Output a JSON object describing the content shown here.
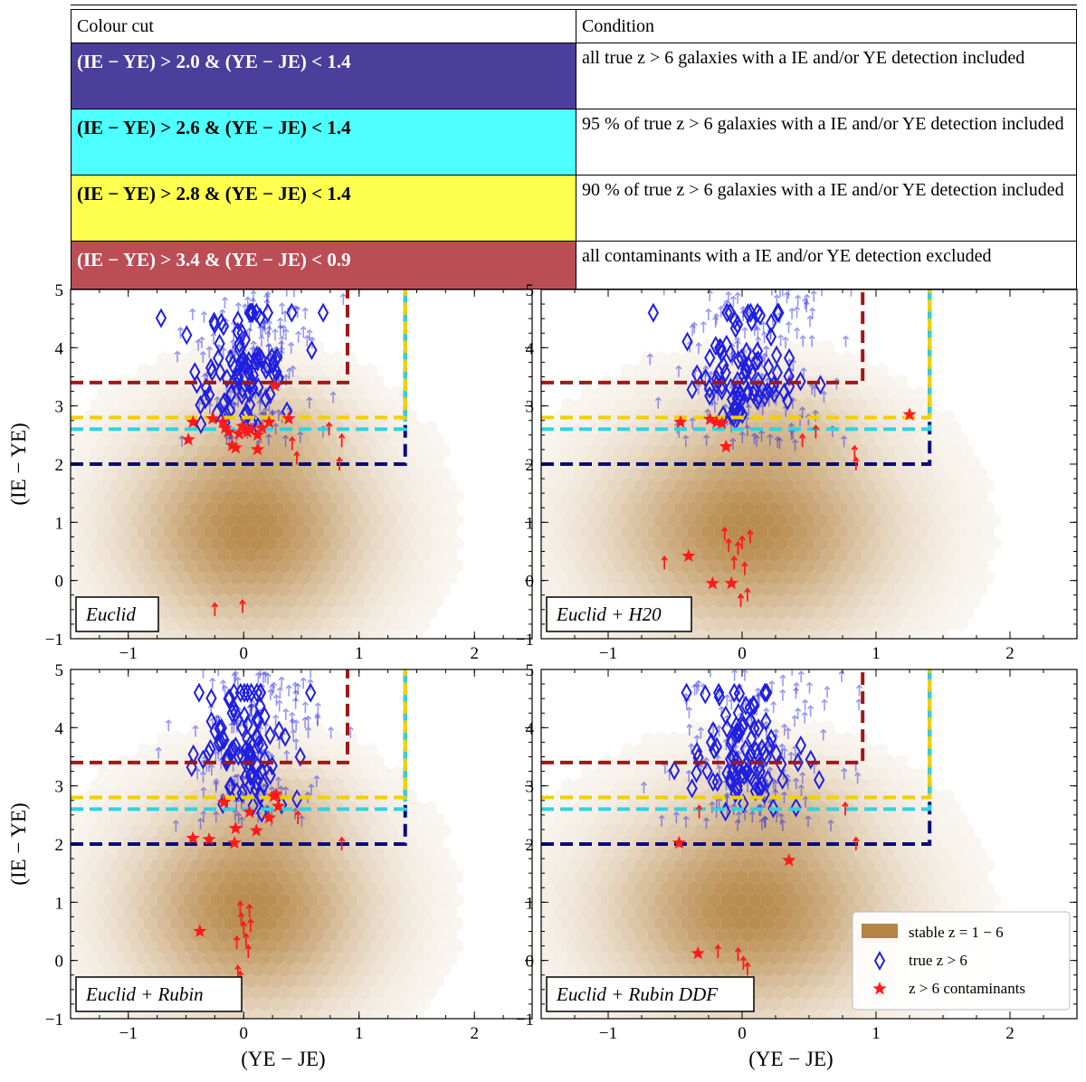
{
  "table": {
    "header": {
      "cut": "Colour cut",
      "condition": "Condition"
    },
    "rows": [
      {
        "cut": "(IE − YE) > 2.0 & (YE − JE) < 1.4",
        "condition": "all true z > 6 galaxies with a IE and/or YE detection included",
        "bg": "#4b3f9b",
        "fg": "#ffffff"
      },
      {
        "cut": "(IE − YE) > 2.6 & (YE − JE) < 1.4",
        "condition": "95 % of true z > 6 galaxies with a IE and/or YE detection included",
        "bg": "#4dffff",
        "fg": "#000000"
      },
      {
        "cut": "(IE − YE) > 2.8 & (YE − JE) < 1.4",
        "condition": "90 % of true z > 6 galaxies with a IE and/or YE detection included",
        "bg": "#ffff4d",
        "fg": "#000000"
      },
      {
        "cut": "(IE − YE) > 3.4 & (YE − JE) < 0.9",
        "condition": "all contaminants with a IE and/or YE detection excluded",
        "bg": "#bb4e55",
        "fg": "#ffffff"
      }
    ]
  },
  "chart_data": [
    {
      "type": "scatter",
      "panel": "Euclid",
      "xlabel": "",
      "ylabel": "(IE − YE)",
      "xlim": [
        -1.5,
        2.5
      ],
      "ylim": [
        -1,
        5
      ],
      "xticks": [
        -1,
        0,
        1,
        2
      ],
      "yticks": [
        -1,
        0,
        1,
        2,
        3,
        4,
        5
      ],
      "cuts": [
        {
          "y": 2.0,
          "xmax": 1.4,
          "color": "#0b0b7a"
        },
        {
          "y": 2.6,
          "xmax": 1.4,
          "color": "#2ed3e0"
        },
        {
          "y": 2.8,
          "xmax": 1.4,
          "color": "#f0d000"
        },
        {
          "y": 3.4,
          "xmax": 0.9,
          "color": "#a01818"
        }
      ],
      "contaminants": [
        [
          -0.48,
          2.42
        ],
        [
          -0.44,
          2.72
        ],
        [
          -0.27,
          2.78
        ],
        [
          -0.18,
          2.72
        ],
        [
          -0.16,
          2.62
        ],
        [
          -0.13,
          2.55
        ],
        [
          -0.1,
          2.32
        ],
        [
          -0.07,
          2.28
        ],
        [
          -0.04,
          2.52
        ],
        [
          -0.01,
          2.65
        ],
        [
          0.03,
          2.55
        ],
        [
          0.06,
          2.6
        ],
        [
          0.12,
          2.25
        ],
        [
          0.16,
          2.62
        ],
        [
          0.22,
          2.72
        ],
        [
          0.27,
          3.35
        ],
        [
          0.39,
          2.78
        ],
        [
          0.12,
          2.5
        ]
      ],
      "contaminant_limits": [
        [
          -0.25,
          -0.5
        ],
        [
          -0.01,
          -0.45
        ],
        [
          0.42,
          2.35
        ],
        [
          0.46,
          2.1
        ],
        [
          0.85,
          2.4
        ],
        [
          0.83,
          2.0
        ],
        [
          0.74,
          2.6
        ]
      ]
    },
    {
      "type": "scatter",
      "panel": "Euclid + H20",
      "xlabel": "",
      "ylabel": "",
      "xlim": [
        -1.5,
        2.5
      ],
      "ylim": [
        -1,
        5
      ],
      "xticks": [
        -1,
        0,
        1,
        2
      ],
      "yticks": [
        -1,
        0,
        1,
        2,
        3,
        4,
        5
      ],
      "cuts": [
        {
          "y": 2.0,
          "xmax": 1.4,
          "color": "#0b0b7a"
        },
        {
          "y": 2.6,
          "xmax": 1.4,
          "color": "#2ed3e0"
        },
        {
          "y": 2.8,
          "xmax": 1.4,
          "color": "#f0d000"
        },
        {
          "y": 3.4,
          "xmax": 0.9,
          "color": "#a01818"
        }
      ],
      "contaminants": [
        [
          -0.46,
          2.72
        ],
        [
          -0.24,
          2.77
        ],
        [
          -0.19,
          2.72
        ],
        [
          -0.15,
          2.7
        ],
        [
          -0.12,
          2.3
        ],
        [
          1.25,
          2.85
        ],
        [
          -0.4,
          0.42
        ],
        [
          -0.22,
          -0.05
        ],
        [
          -0.08,
          -0.05
        ]
      ],
      "contaminant_limits": [
        [
          -0.58,
          0.3
        ],
        [
          -0.13,
          0.8
        ],
        [
          -0.1,
          0.6
        ],
        [
          -0.06,
          0.3
        ],
        [
          -0.03,
          0.55
        ],
        [
          0.0,
          0.65
        ],
        [
          0.02,
          0.2
        ],
        [
          0.06,
          0.75
        ],
        [
          0.04,
          -0.25
        ],
        [
          -0.01,
          -0.35
        ],
        [
          0.45,
          2.4
        ],
        [
          0.55,
          2.55
        ],
        [
          0.85,
          2.0
        ],
        [
          0.84,
          2.2
        ]
      ]
    },
    {
      "type": "scatter",
      "panel": "Euclid + Rubin",
      "xlabel": "(YE − JE)",
      "ylabel": "(IE − YE)",
      "xlim": [
        -1.5,
        2.5
      ],
      "ylim": [
        -1,
        5
      ],
      "xticks": [
        -1,
        0,
        1,
        2
      ],
      "yticks": [
        -1,
        0,
        1,
        2,
        3,
        4,
        5
      ],
      "cuts": [
        {
          "y": 2.0,
          "xmax": 1.4,
          "color": "#0b0b7a"
        },
        {
          "y": 2.6,
          "xmax": 1.4,
          "color": "#2ed3e0"
        },
        {
          "y": 2.8,
          "xmax": 1.4,
          "color": "#f0d000"
        },
        {
          "y": 3.4,
          "xmax": 0.9,
          "color": "#a01818"
        }
      ],
      "contaminants": [
        [
          -0.44,
          2.1
        ],
        [
          -0.3,
          2.08
        ],
        [
          -0.17,
          2.72
        ],
        [
          -0.08,
          2.02
        ],
        [
          -0.07,
          2.27
        ],
        [
          0.05,
          2.55
        ],
        [
          0.11,
          2.23
        ],
        [
          0.22,
          2.45
        ],
        [
          0.26,
          2.82
        ],
        [
          0.3,
          2.65
        ],
        [
          0.28,
          2.85
        ],
        [
          -0.38,
          0.5
        ]
      ],
      "contaminant_limits": [
        [
          -0.03,
          0.9
        ],
        [
          -0.02,
          0.7
        ],
        [
          0.0,
          0.55
        ],
        [
          0.02,
          0.35
        ],
        [
          -0.06,
          0.3
        ],
        [
          0.05,
          0.85
        ],
        [
          0.04,
          0.15
        ],
        [
          0.06,
          0.6
        ],
        [
          -0.05,
          -0.2
        ],
        [
          -0.03,
          -0.3
        ],
        [
          0.47,
          2.45
        ],
        [
          0.85,
          2.0
        ]
      ]
    },
    {
      "type": "scatter",
      "panel": "Euclid + Rubin DDF",
      "xlabel": "(YE − JE)",
      "ylabel": "",
      "xlim": [
        -1.5,
        2.5
      ],
      "ylim": [
        -1,
        5
      ],
      "xticks": [
        -1,
        0,
        1,
        2
      ],
      "yticks": [
        -1,
        0,
        1,
        2,
        3,
        4,
        5
      ],
      "cuts": [
        {
          "y": 2.0,
          "xmax": 1.4,
          "color": "#0b0b7a"
        },
        {
          "y": 2.6,
          "xmax": 1.4,
          "color": "#2ed3e0"
        },
        {
          "y": 2.8,
          "xmax": 1.4,
          "color": "#f0d000"
        },
        {
          "y": 3.4,
          "xmax": 0.9,
          "color": "#a01818"
        }
      ],
      "contaminants": [
        [
          -0.47,
          2.02
        ],
        [
          0.35,
          1.72
        ],
        [
          -0.33,
          0.12
        ]
      ],
      "contaminant_limits": [
        [
          -0.32,
          2.55
        ],
        [
          -0.18,
          0.15
        ],
        [
          -0.03,
          0.1
        ],
        [
          0.01,
          -0.05
        ],
        [
          0.04,
          -0.15
        ],
        [
          0.77,
          2.6
        ],
        [
          0.85,
          2.0
        ]
      ],
      "legend": {
        "position": "bottom-right",
        "entries": [
          "stable z = 1 − 6",
          "true z > 6",
          "z > 6 contaminants"
        ]
      }
    }
  ],
  "colors": {
    "hexbin": "#b58544",
    "true_z6": "#1f1fe0",
    "contaminant": "#ff1a1a"
  }
}
